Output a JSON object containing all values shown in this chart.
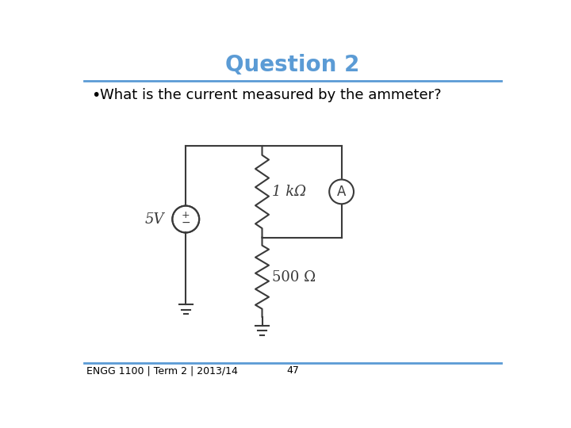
{
  "title": "Question 2",
  "title_color": "#5B9BD5",
  "title_fontsize": 20,
  "title_fontstyle": "bold",
  "bullet_text": "What is the current measured by the ammeter?",
  "bullet_fontsize": 13,
  "footer_text": "ENGG 1100 | Term 2 | 2013/14",
  "footer_page": "47",
  "footer_fontsize": 9,
  "line_color": "#5B9BD5",
  "circuit_color": "#3a3a3a",
  "bg_color": "#ffffff",
  "voltage_label": "5V",
  "resistor1_label": "1 kΩ",
  "resistor2_label": "500 Ω",
  "ammeter_label": "A"
}
